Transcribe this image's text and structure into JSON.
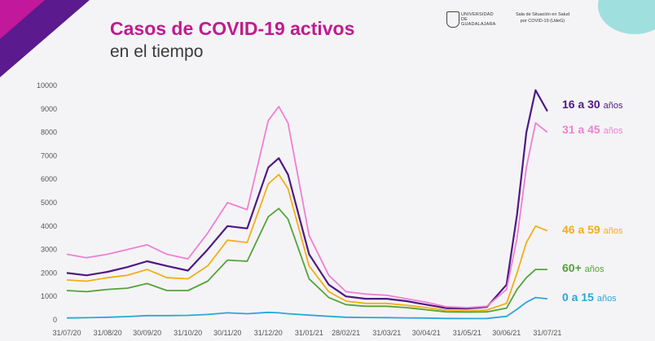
{
  "title": "Casos de COVID-19 activos",
  "subtitle": "en el tiempo",
  "logos": {
    "udg": "UNIVERSIDAD DE GUADALAJARA",
    "sala_line1": "Sala de Situación en Salud",
    "sala_line2": "por COVID-19 (UdeG)"
  },
  "colors": {
    "title": "#c01b8f",
    "age_16_30": "#4f1884",
    "age_31_45": "#f07fd3",
    "age_46_59": "#f2ae17",
    "age_60": "#55a23a",
    "age_0_15": "#2aa7d8",
    "background": "#f4f4f6"
  },
  "chart_data": {
    "type": "line",
    "xlabel": "",
    "ylabel": "",
    "ylim": [
      0,
      10000
    ],
    "xlim": [
      "2020-07-31",
      "2021-08-05"
    ],
    "yticks": [
      "0",
      "1000",
      "2000",
      "3000",
      "4000",
      "5000",
      "6000",
      "7000",
      "8000",
      "9000",
      "10000"
    ],
    "xticks": [
      {
        "label": "31/07/20",
        "date": "2020-07-31"
      },
      {
        "label": "31/08/20",
        "date": "2020-08-31"
      },
      {
        "label": "30/09/20",
        "date": "2020-09-30"
      },
      {
        "label": "31/10/20",
        "date": "2020-10-31"
      },
      {
        "label": "30/11/20",
        "date": "2020-11-30"
      },
      {
        "label": "31/12/20",
        "date": "2020-12-31"
      },
      {
        "label": "31/01/21",
        "date": "2021-01-31"
      },
      {
        "label": "28/02/21",
        "date": "2021-02-28"
      },
      {
        "label": "31/03/21",
        "date": "2021-03-31"
      },
      {
        "label": "30/04/21",
        "date": "2021-04-30"
      },
      {
        "label": "31/05/21",
        "date": "2021-05-31"
      },
      {
        "label": "30/06/21",
        "date": "2021-06-30"
      },
      {
        "label": "31/07/21",
        "date": "2021-07-31"
      }
    ],
    "x": [
      "2020-07-31",
      "2020-08-15",
      "2020-08-31",
      "2020-09-15",
      "2020-09-30",
      "2020-10-15",
      "2020-10-31",
      "2020-11-15",
      "2020-11-30",
      "2020-12-15",
      "2020-12-31",
      "2021-01-08",
      "2021-01-15",
      "2021-01-31",
      "2021-02-15",
      "2021-02-28",
      "2021-03-15",
      "2021-03-31",
      "2021-04-15",
      "2021-04-30",
      "2021-05-15",
      "2021-05-31",
      "2021-06-15",
      "2021-06-30",
      "2021-07-08",
      "2021-07-15",
      "2021-07-22",
      "2021-07-31"
    ],
    "series": [
      {
        "name": "16 a 30",
        "label_suffix": "años",
        "color": "#4f1884",
        "values": [
          2000,
          1900,
          2050,
          2250,
          2500,
          2300,
          2100,
          3000,
          4000,
          3900,
          6500,
          6900,
          6200,
          2800,
          1500,
          1000,
          900,
          900,
          800,
          650,
          500,
          480,
          550,
          1500,
          4500,
          8000,
          9800,
          8900
        ]
      },
      {
        "name": "31 a 45",
        "label_suffix": "años",
        "color": "#f07fd3",
        "values": [
          2800,
          2650,
          2800,
          3000,
          3200,
          2800,
          2600,
          3700,
          5000,
          4700,
          8500,
          9100,
          8400,
          3600,
          1900,
          1200,
          1100,
          1050,
          900,
          750,
          560,
          520,
          580,
          1300,
          3500,
          6500,
          8400,
          8000
        ]
      },
      {
        "name": "46 a 59",
        "label_suffix": "años",
        "color": "#f2ae17",
        "values": [
          1700,
          1650,
          1800,
          1900,
          2150,
          1800,
          1750,
          2300,
          3400,
          3300,
          5800,
          6200,
          5600,
          2300,
          1200,
          800,
          700,
          700,
          620,
          520,
          410,
          390,
          420,
          700,
          2000,
          3300,
          4000,
          3800
        ]
      },
      {
        "name": "60+",
        "label_suffix": "años",
        "color": "#55a23a",
        "values": [
          1250,
          1200,
          1300,
          1350,
          1550,
          1250,
          1250,
          1650,
          2550,
          2500,
          4400,
          4750,
          4300,
          1750,
          950,
          650,
          580,
          580,
          520,
          430,
          340,
          330,
          340,
          500,
          1300,
          1800,
          2150,
          2150
        ]
      },
      {
        "name": "0 a 15",
        "label_suffix": "años",
        "color": "#2aa7d8",
        "values": [
          80,
          90,
          110,
          140,
          180,
          180,
          190,
          230,
          300,
          260,
          320,
          300,
          260,
          200,
          150,
          110,
          100,
          95,
          85,
          75,
          60,
          55,
          60,
          150,
          450,
          750,
          950,
          900
        ]
      }
    ],
    "legend": "right-end labels",
    "grid": false
  }
}
